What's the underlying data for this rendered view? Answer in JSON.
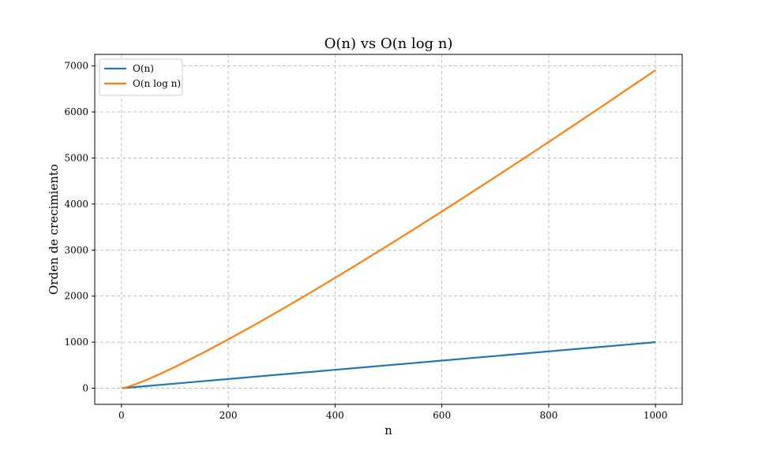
{
  "chart_data": {
    "type": "line",
    "title": "O(n) vs O(n log n)",
    "xlabel": "n",
    "ylabel": "Orden de crecimiento",
    "xlim": [
      -50,
      1050
    ],
    "ylim": [
      -350,
      7250
    ],
    "xticks": [
      0,
      200,
      400,
      600,
      800,
      1000
    ],
    "yticks": [
      0,
      1000,
      2000,
      3000,
      4000,
      5000,
      6000,
      7000
    ],
    "grid": true,
    "grid_style": "dashed",
    "legend_position": "upper-left",
    "series": [
      {
        "name": "O(n)",
        "color": "#1f77b4",
        "x": [
          1,
          50,
          100,
          150,
          200,
          250,
          300,
          350,
          400,
          450,
          500,
          550,
          600,
          650,
          700,
          750,
          800,
          850,
          900,
          950,
          1000
        ],
        "y": [
          1,
          50,
          100,
          150,
          200,
          250,
          300,
          350,
          400,
          450,
          500,
          550,
          600,
          650,
          700,
          750,
          800,
          850,
          900,
          950,
          1000
        ]
      },
      {
        "name": "O(n log n)",
        "color": "#ff7f0e",
        "x": [
          1,
          10,
          25,
          50,
          75,
          100,
          150,
          200,
          250,
          300,
          350,
          400,
          450,
          500,
          550,
          600,
          650,
          700,
          750,
          800,
          850,
          900,
          950,
          1000
        ],
        "y": [
          0,
          23,
          80,
          196,
          324,
          461,
          752,
          1060,
          1380,
          1711,
          2050,
          2397,
          2749,
          3107,
          3470,
          3838,
          4210,
          4586,
          4965,
          5348,
          5734,
          6122,
          6515,
          6908
        ]
      }
    ]
  }
}
